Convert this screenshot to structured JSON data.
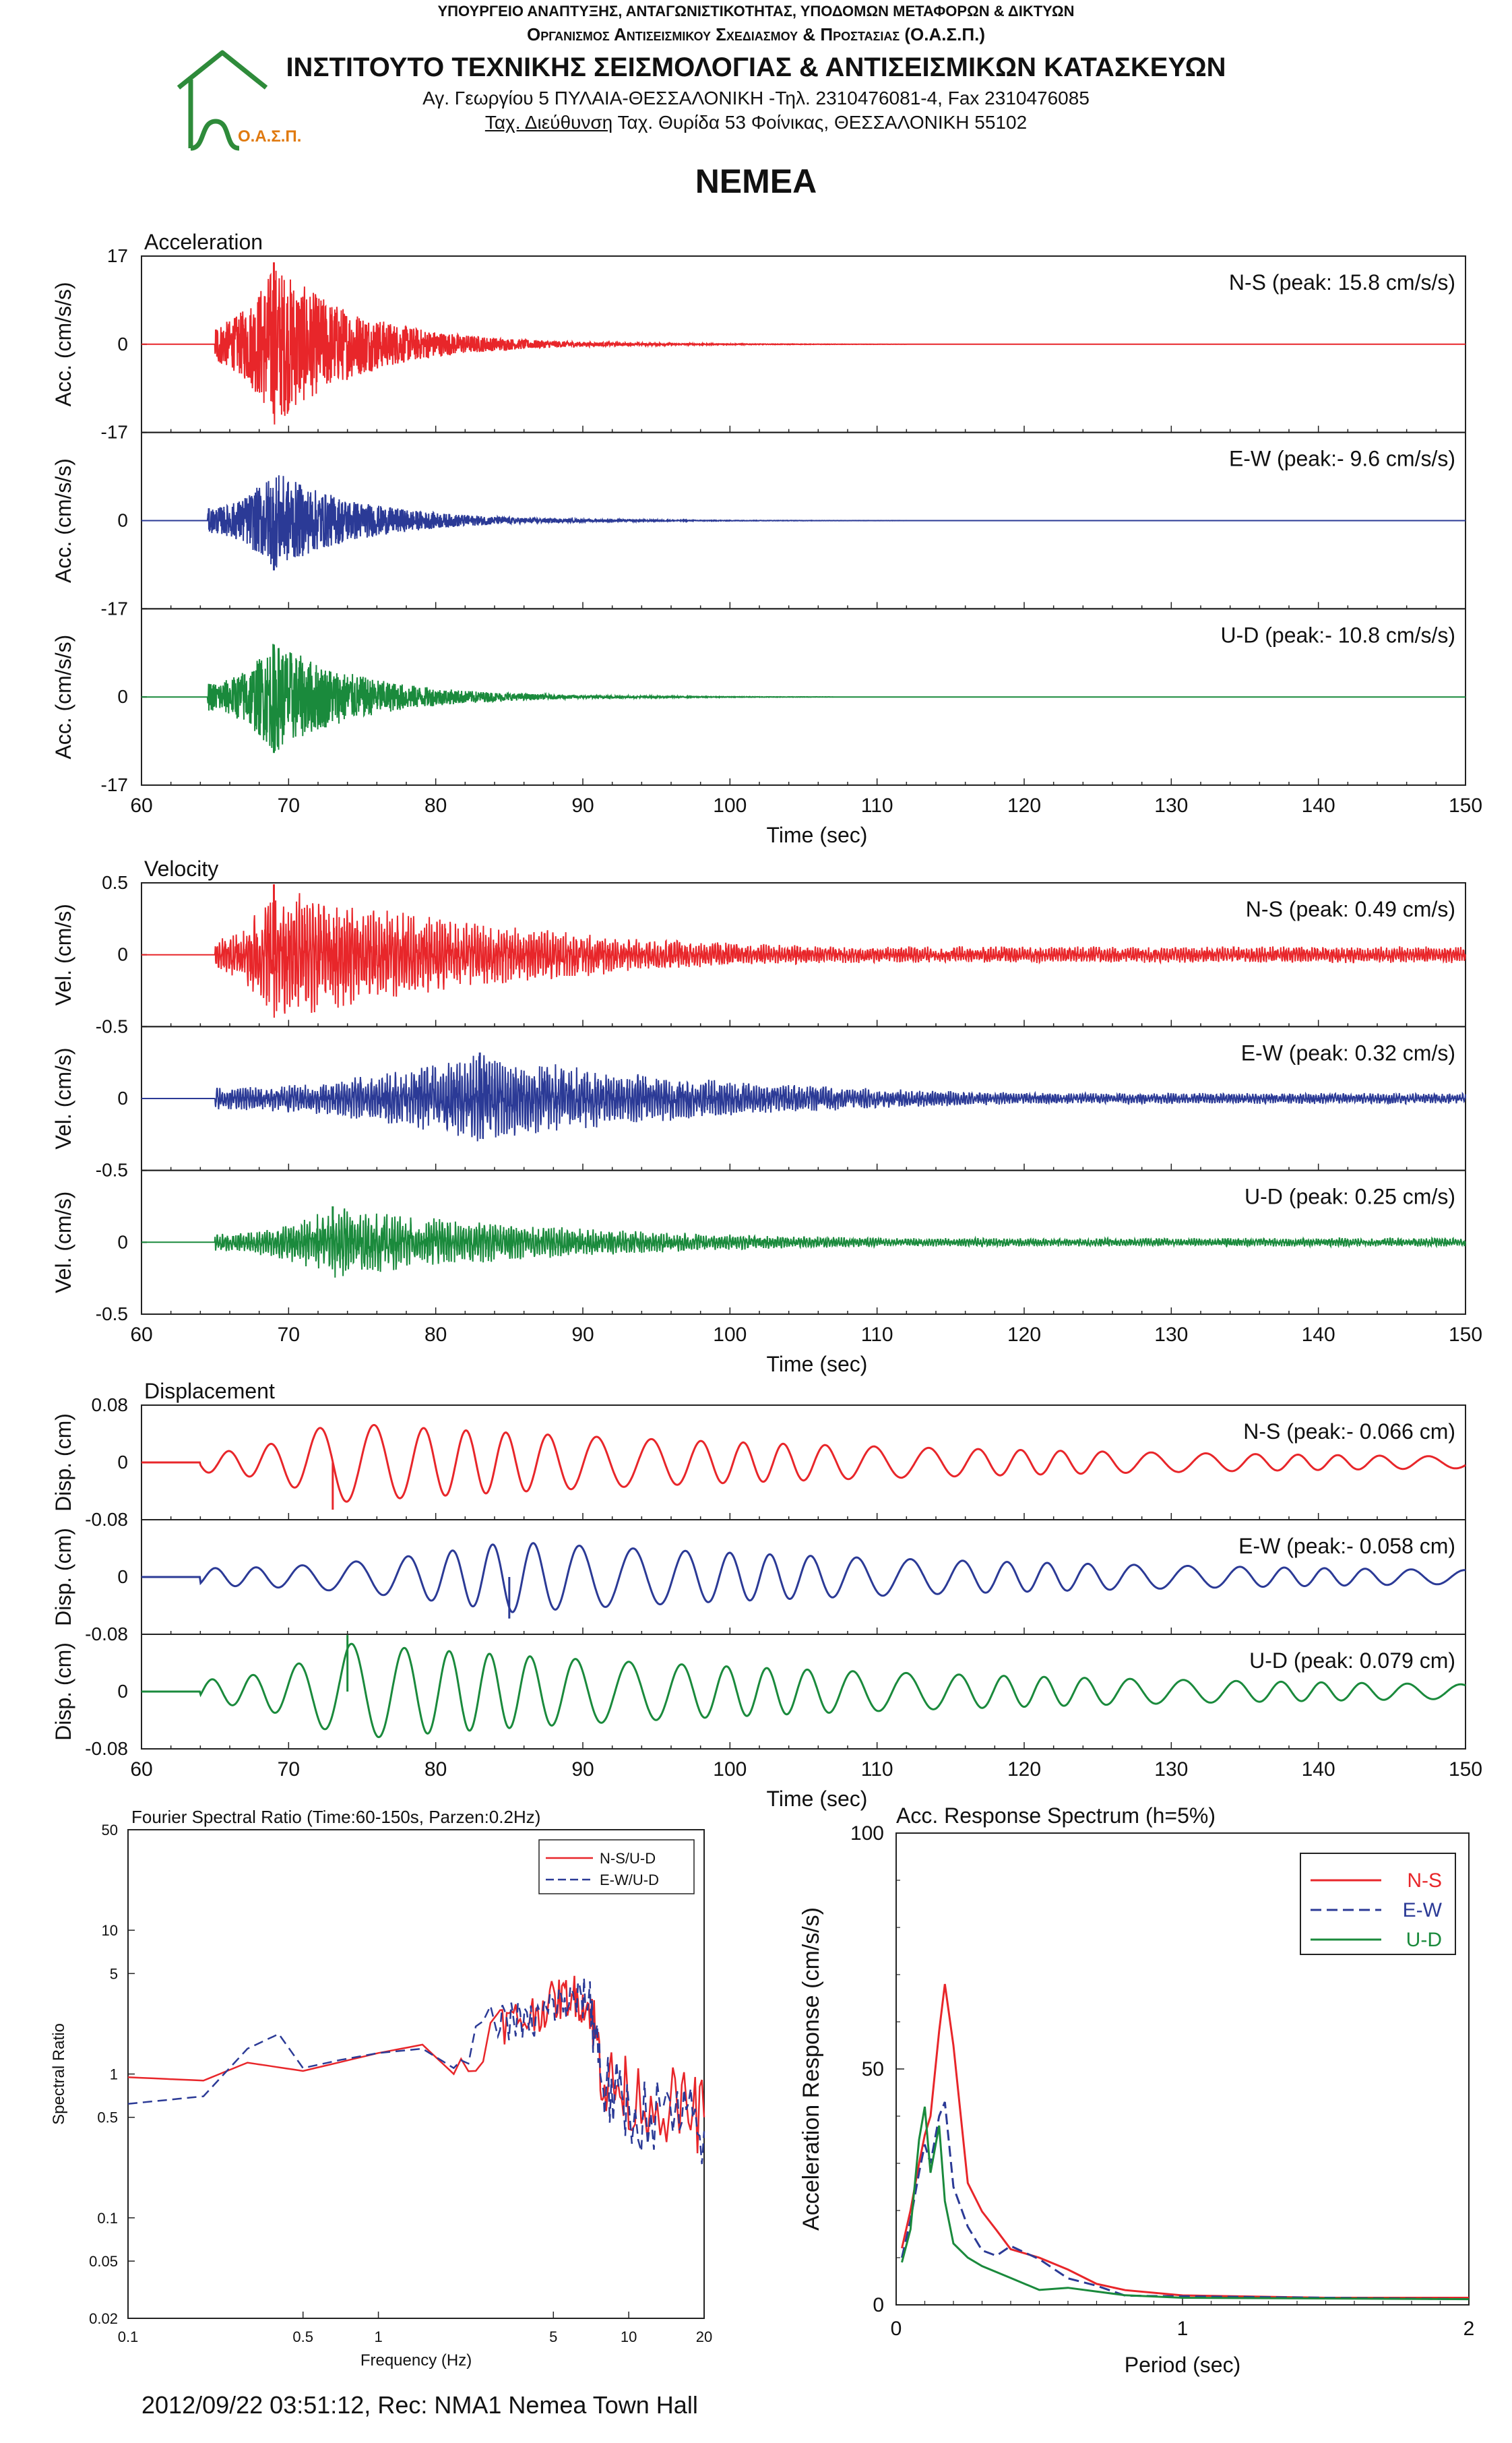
{
  "header": {
    "ministry": "ΥΠΟΥΡΓΕΙΟ ΑΝΑΠΤΥΞΗΣ, ΑΝΤΑΓΩΝΙΣΤΙΚΟΤΗΤΑΣ, ΥΠΟΔΟΜΩΝ ΜΕΤΑΦΟΡΩΝ & ΔΙΚΤΥΩΝ",
    "organization": "Οργανισμος Αντισεισμικου Σχεδιασμου & Προστασιας (Ο.Α.Σ.Π.)",
    "institute": "ΙΝΣΤΙΤΟΥΤΟ ΤΕΧΝΙΚΗΣ ΣΕΙΣΜΟΛΟΓΙΑΣ & ΑΝΤΙΣΕΙΣΜΙΚΩΝ ΚΑΤΑΣΚΕΥΩΝ",
    "address": "Αγ. Γεωργίου 5 ΠΥΛΑΙΑ-ΘΕΣΣΑΛΟΝΙΚΗ -Τηλ. 2310476081-4,  Fax 2310476085",
    "postal": "Ταχ. Θυρίδα 53 Φοίνικας, ΘΕΣΣΑΛΟΝΙΚΗ 55102",
    "postal_prefix": "Ταχ. Διεύθυνση",
    "logo_text": "Ο.Α.Σ.Π.",
    "station_title": "NEMEA"
  },
  "footer": {
    "caption": "2012/09/22 03:51:12, Rec: NMA1 Nemea Town Hall"
  },
  "colors": {
    "ns": "#e8262a",
    "ew": "#2b3a96",
    "ud": "#1a8a3c",
    "logo": "#2e8b3a",
    "logo_text": "#e07a10"
  },
  "chart_data": [
    {
      "type": "line",
      "title": "Acceleration",
      "xlabel": "Time (sec)",
      "ylabel": "Acc. (cm/s/s)",
      "xlim": [
        60,
        150
      ],
      "xticks": [
        "60",
        "70",
        "80",
        "90",
        "100",
        "110",
        "120",
        "130",
        "140",
        "150"
      ],
      "ylim": [
        -17,
        17
      ],
      "yticks": [
        "17",
        "0",
        "-17"
      ],
      "series": [
        {
          "name": "N-S",
          "label": "N-S (peak: 15.8 cm/s/s)",
          "peak": 15.8,
          "time_of_peak": 69,
          "onset": 65,
          "coda_end": 112
        },
        {
          "name": "E-W",
          "label": "E-W (peak:- 9.6 cm/s/s)",
          "peak": -9.6,
          "time_of_peak": 69,
          "onset": 64.5,
          "coda_end": 112
        },
        {
          "name": "U-D",
          "label": "U-D (peak:- 10.8 cm/s/s)",
          "peak": -10.8,
          "time_of_peak": 69,
          "onset": 64.5,
          "coda_end": 107
        }
      ]
    },
    {
      "type": "line",
      "title": "Velocity",
      "xlabel": "Time (sec)",
      "ylabel": "Vel. (cm/s)",
      "xlim": [
        60,
        150
      ],
      "xticks": [
        "60",
        "70",
        "80",
        "90",
        "100",
        "110",
        "120",
        "130",
        "140",
        "150"
      ],
      "ylim": [
        -0.5,
        0.5
      ],
      "yticks": [
        "0.5",
        "0",
        "-0.5"
      ],
      "series": [
        {
          "name": "N-S",
          "label": "N-S (peak: 0.49 cm/s)",
          "peak": 0.49,
          "time_of_peak": 69,
          "onset": 65
        },
        {
          "name": "E-W",
          "label": "E-W (peak: 0.32 cm/s)",
          "peak": 0.32,
          "time_of_peak": 83,
          "onset": 65
        },
        {
          "name": "U-D",
          "label": "U-D (peak: 0.25 cm/s)",
          "peak": 0.25,
          "time_of_peak": 73,
          "onset": 65
        }
      ]
    },
    {
      "type": "line",
      "title": "Displacement",
      "xlabel": "Time (sec)",
      "ylabel": "Disp. (cm)",
      "xlim": [
        60,
        150
      ],
      "xticks": [
        "60",
        "70",
        "80",
        "90",
        "100",
        "110",
        "120",
        "130",
        "140",
        "150"
      ],
      "ylim": [
        -0.08,
        0.08
      ],
      "yticks": [
        "0.08",
        "0",
        "-0.08"
      ],
      "series": [
        {
          "name": "N-S",
          "label": "N-S (peak:- 0.066 cm)",
          "peak": -0.066,
          "time_of_peak": 73,
          "onset": 64
        },
        {
          "name": "E-W",
          "label": "E-W (peak:- 0.058 cm)",
          "peak": -0.058,
          "time_of_peak": 85,
          "onset": 64
        },
        {
          "name": "U-D",
          "label": "U-D (peak: 0.079 cm)",
          "peak": 0.079,
          "time_of_peak": 74,
          "onset": 64
        }
      ]
    },
    {
      "type": "line",
      "title": "Fourier Spectral Ratio (Time:60-150s, Parzen:0.2Hz)",
      "xlabel": "Frequency (Hz)",
      "ylabel": "Spectral Ratio",
      "xscale": "log",
      "yscale": "log",
      "xlim": [
        0.1,
        20
      ],
      "ylim": [
        0.02,
        50
      ],
      "xticks": [
        "0.1",
        "0.5",
        "1",
        "5",
        "10",
        "20"
      ],
      "yticks": [
        "50",
        "10",
        "5",
        "1",
        "0.5",
        "0.1",
        "0.05",
        "0.02"
      ],
      "legend": "top-right",
      "series": [
        {
          "name": "N-S/U-D",
          "style": "solid",
          "x": [
            0.1,
            0.2,
            0.3,
            0.5,
            1.0,
            1.5,
            2.0,
            3.0,
            4.0,
            5.0,
            6.0,
            7.0,
            8.0,
            10.0,
            15.0,
            20.0
          ],
          "y": [
            0.95,
            0.9,
            1.2,
            1.05,
            1.4,
            1.6,
            1.0,
            2.2,
            2.5,
            3.2,
            3.6,
            2.8,
            0.9,
            0.7,
            0.6,
            0.5
          ]
        },
        {
          "name": "E-W/U-D",
          "style": "dashed",
          "x": [
            0.1,
            0.2,
            0.3,
            0.4,
            0.5,
            0.7,
            1.0,
            1.5,
            2.0,
            3.0,
            4.0,
            5.0,
            6.0,
            7.0,
            8.0,
            10.0,
            15.0,
            20.0
          ],
          "y": [
            0.62,
            0.7,
            1.5,
            1.9,
            1.1,
            1.25,
            1.4,
            1.5,
            1.1,
            2.5,
            2.2,
            3.0,
            3.2,
            3.4,
            0.8,
            0.55,
            0.5,
            0.4
          ]
        }
      ]
    },
    {
      "type": "line",
      "title": "Acc. Response Spectrum (h=5%)",
      "xlabel": "Period (sec)",
      "ylabel": "Acceleration Response (cm/s/s)",
      "xlim": [
        0,
        2
      ],
      "ylim": [
        0,
        100
      ],
      "xticks": [
        "0",
        "1",
        "2"
      ],
      "yticks": [
        "100",
        "50",
        "0"
      ],
      "legend": "top-right",
      "series": [
        {
          "name": "N-S",
          "style": "solid",
          "x": [
            0.02,
            0.05,
            0.08,
            0.1,
            0.12,
            0.15,
            0.17,
            0.2,
            0.25,
            0.3,
            0.35,
            0.4,
            0.5,
            0.6,
            0.7,
            0.8,
            1.0,
            1.5,
            2.0
          ],
          "y": [
            12,
            20,
            30,
            36,
            40,
            58,
            68,
            55,
            25,
            20,
            15,
            12,
            10,
            7,
            5,
            3,
            2,
            1.5,
            1.5
          ]
        },
        {
          "name": "E-W",
          "style": "dashed",
          "x": [
            0.02,
            0.05,
            0.08,
            0.1,
            0.12,
            0.15,
            0.17,
            0.2,
            0.25,
            0.3,
            0.35,
            0.4,
            0.5,
            0.6,
            0.7,
            0.8,
            1.0,
            1.5,
            2.0
          ],
          "y": [
            10,
            18,
            28,
            34,
            30,
            40,
            43,
            25,
            16,
            12,
            11,
            13,
            10,
            6,
            4,
            2.5,
            1.8,
            1.5,
            1.2
          ]
        },
        {
          "name": "U-D",
          "style": "solid",
          "x": [
            0.02,
            0.05,
            0.08,
            0.1,
            0.12,
            0.15,
            0.17,
            0.2,
            0.25,
            0.3,
            0.4,
            0.5,
            0.6,
            0.8,
            1.0,
            2.0
          ],
          "y": [
            9,
            16,
            35,
            42,
            28,
            38,
            22,
            13,
            10,
            8,
            6,
            4,
            3,
            1.8,
            1.5,
            1.2
          ]
        }
      ]
    }
  ]
}
